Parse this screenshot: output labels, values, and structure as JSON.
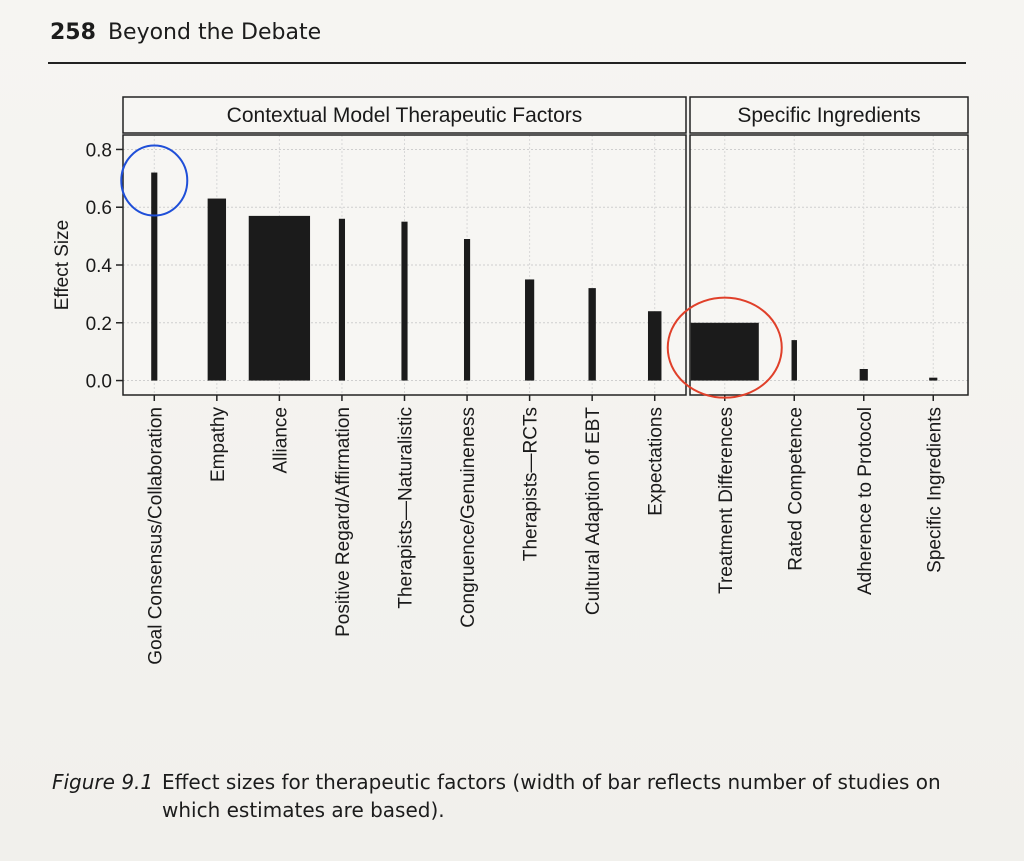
{
  "header": {
    "page_number": "258",
    "running_title": "Beyond the Debate"
  },
  "caption": {
    "label": "Figure 9.1",
    "text": "Effect sizes for therapeutic factors (width of bar reflects number of studies on which estimates are based)."
  },
  "annotation_colors": {
    "blue_circle": "#1f4fd8",
    "red_circle": "#e0402a"
  },
  "chart_data": {
    "type": "bar",
    "ylabel": "Effect Size",
    "ylim": [
      -0.05,
      0.85
    ],
    "yticks": [
      "0.0",
      "0.2",
      "0.4",
      "0.6",
      "0.8"
    ],
    "grid": true,
    "panels": [
      {
        "title": "Contextual Model Therapeutic Factors",
        "categories": [
          "Goal Consensus/Collaboration",
          "Empathy",
          "Alliance",
          "Positive Regard/Affirmation",
          "Therapists—Naturalistic",
          "Congruence/Genuineness",
          "Therapists—RCTs",
          "Cultural Adaption of EBT",
          "Expectations"
        ],
        "values": [
          0.72,
          0.63,
          0.57,
          0.56,
          0.55,
          0.49,
          0.35,
          0.32,
          0.24
        ],
        "relative_widths": [
          0.1,
          0.3,
          1.0,
          0.1,
          0.1,
          0.1,
          0.15,
          0.12,
          0.22
        ]
      },
      {
        "title": "Specific Ingredients",
        "categories": [
          "Treatment Differences",
          "Rated Competence",
          "Adherence to Protocol",
          "Specific Ingredients"
        ],
        "values": [
          0.2,
          0.14,
          0.04,
          0.01
        ],
        "relative_widths": [
          1.0,
          0.08,
          0.12,
          0.12
        ]
      }
    ],
    "bar_color": "#1b1b1b",
    "highlights": [
      {
        "panel": 0,
        "category": "Goal Consensus/Collaboration",
        "color": "#1f4fd8"
      },
      {
        "panel": 1,
        "category": "Treatment Differences",
        "color": "#e0402a"
      }
    ]
  }
}
